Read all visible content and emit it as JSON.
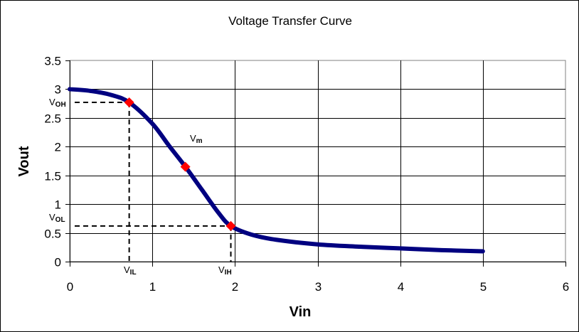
{
  "chart_data": {
    "type": "line",
    "title": "Voltage Transfer Curve",
    "xlabel": "Vin",
    "ylabel": "Vout",
    "xlim": [
      0,
      6
    ],
    "ylim": [
      0,
      3.5
    ],
    "x_ticks": [
      "0",
      "1",
      "2",
      "3",
      "4",
      "5",
      "6"
    ],
    "y_ticks": [
      "0",
      "0.5",
      "1",
      "1.5",
      "2",
      "2.5",
      "3",
      "3.5"
    ],
    "grid": true,
    "legend": "none",
    "series": [
      {
        "name": "Vout",
        "color": "#000080",
        "x": [
          0,
          0.25,
          0.5,
          0.72,
          1.0,
          1.2,
          1.4,
          1.6,
          1.8,
          1.95,
          2.2,
          2.5,
          3.0,
          3.5,
          4.0,
          4.5,
          5.0
        ],
        "y": [
          3.0,
          2.97,
          2.9,
          2.77,
          2.4,
          2.02,
          1.65,
          1.25,
          0.85,
          0.62,
          0.47,
          0.38,
          0.3,
          0.26,
          0.23,
          0.2,
          0.18
        ]
      }
    ],
    "markers": [
      {
        "name": "VOH point",
        "x": 0.72,
        "y": 2.77,
        "color": "#ff0000"
      },
      {
        "name": "Vm point",
        "x": 1.4,
        "y": 1.65,
        "color": "#ff0000"
      },
      {
        "name": "VIH point",
        "x": 1.95,
        "y": 0.62,
        "color": "#ff0000"
      }
    ],
    "annotations": [
      {
        "text": "V",
        "sub": "OH",
        "x": 0,
        "y": 2.77
      },
      {
        "text": "V",
        "sub": "OL",
        "x": 0,
        "y": 0.62
      },
      {
        "text": "V",
        "sub": "IL",
        "x": 0.72,
        "y": 0
      },
      {
        "text": "V",
        "sub": "IH",
        "x": 1.95,
        "y": 0
      },
      {
        "text": "V",
        "sub": "m",
        "x": 1.55,
        "y": 2.1
      }
    ]
  }
}
